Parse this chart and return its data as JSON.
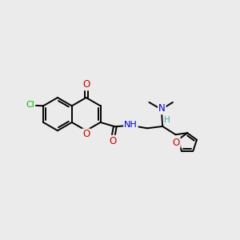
{
  "background_color": "#ebebeb",
  "bond_color": "#000000",
  "fig_width": 3.0,
  "fig_height": 3.0,
  "dpi": 100,
  "colors": {
    "C": "#000000",
    "O": "#cc0000",
    "N": "#0000cc",
    "Cl": "#00bb00",
    "H_teal": "#4da6a6"
  }
}
